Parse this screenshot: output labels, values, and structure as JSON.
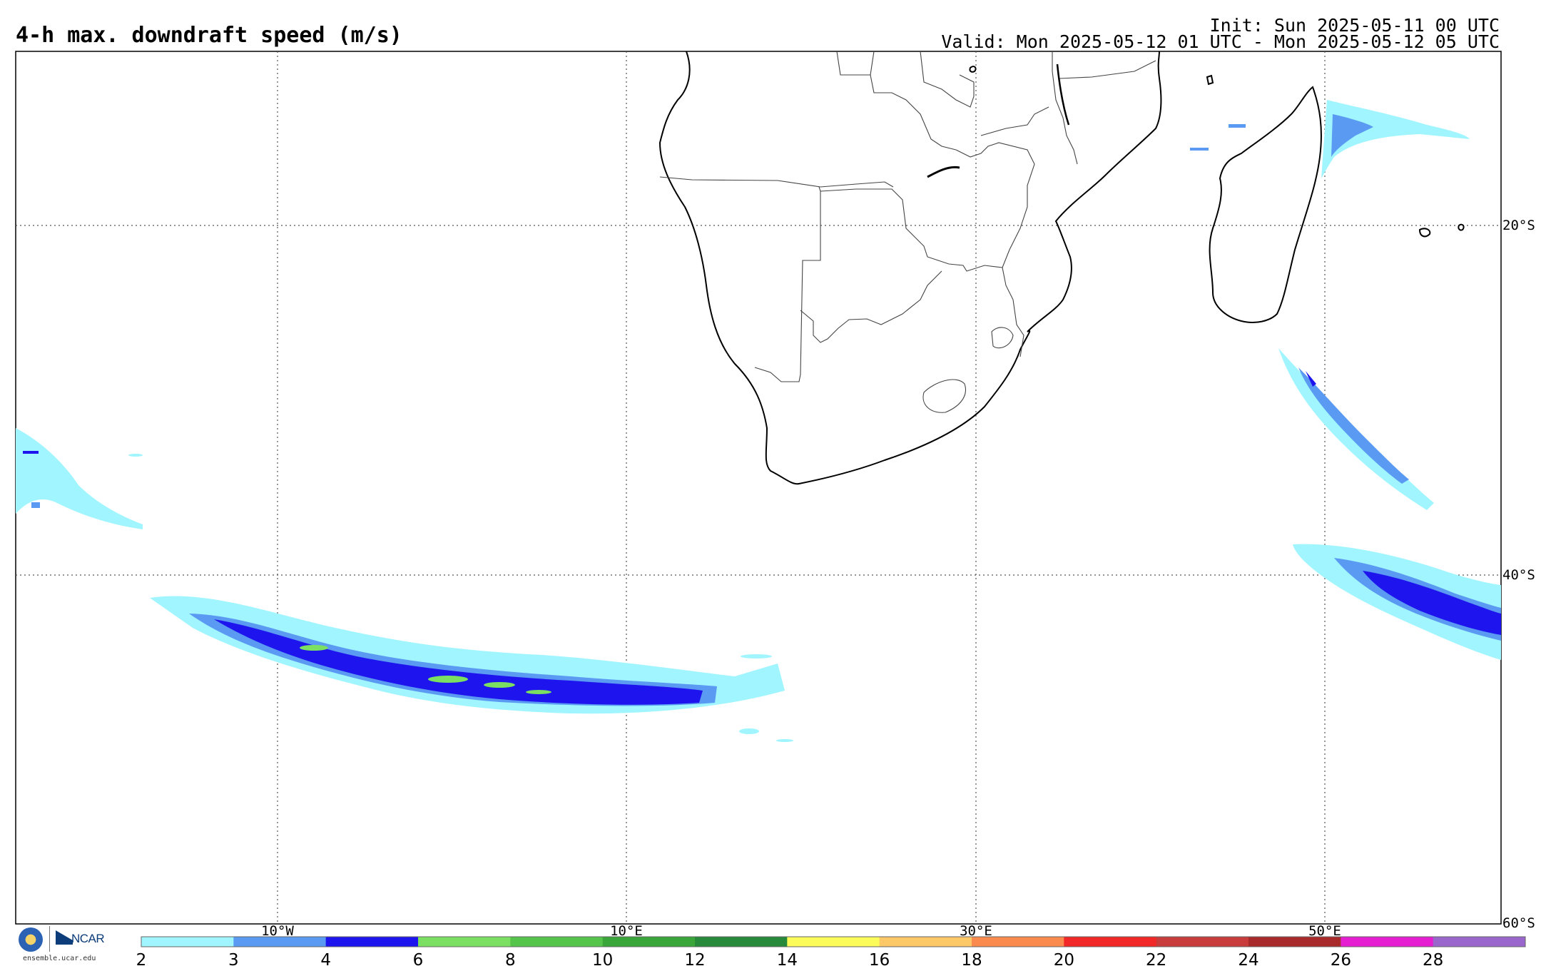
{
  "header": {
    "title": "4-h max. downdraft speed (m/s)",
    "init": "Init: Sun 2025-05-11 00 UTC",
    "valid": "Valid: Mon 2025-05-12 01 UTC - Mon 2025-05-12 05 UTC"
  },
  "map": {
    "lon_labels": [
      "10°W",
      "10°E",
      "30°E",
      "50°E"
    ],
    "lat_labels": [
      "20°S",
      "40°S",
      "60°S"
    ]
  },
  "colorbar": {
    "ticks": [
      "2",
      "3",
      "4",
      "6",
      "8",
      "10",
      "12",
      "14",
      "16",
      "18",
      "20",
      "22",
      "24",
      "26",
      "28"
    ],
    "colors": [
      "#a0f5ff",
      "#5a9af2",
      "#1e14ee",
      "#7be061",
      "#55c44a",
      "#3aa63a",
      "#268a3a",
      "#fbfb5a",
      "#fcc868",
      "#fa8a4e",
      "#f22828",
      "#c83c3c",
      "#a82a2a",
      "#e61ed2",
      "#9966cc"
    ]
  },
  "logos": {
    "nsf": "NSF",
    "ncar": "NCAR",
    "site": "ensemble.ucar.edu"
  },
  "colors": {
    "light_cyan": "#a0f5ff",
    "mid_blue": "#5a9af2",
    "deep_blue": "#1e14ee",
    "green": "#7be061"
  }
}
